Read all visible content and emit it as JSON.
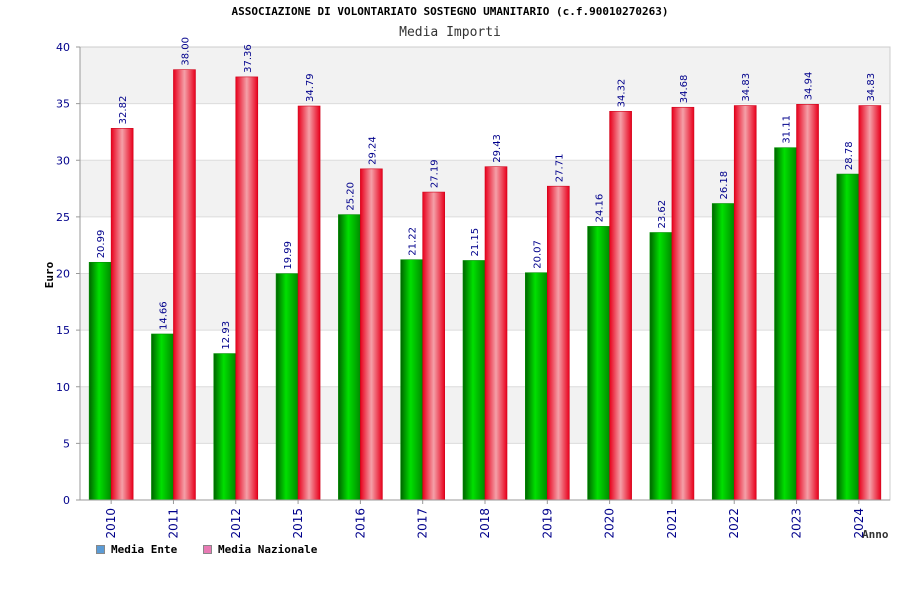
{
  "chart_data": {
    "type": "bar",
    "title": "ASSOCIAZIONE DI VOLONTARIATO SOSTEGNO UMANITARIO (c.f.90010270263)",
    "subtitle": "Media Importi",
    "xlabel": "Anno",
    "ylabel": "Euro",
    "ylim": [
      0,
      40
    ],
    "yticks": [
      "0",
      "5",
      "10",
      "15",
      "20",
      "25",
      "30",
      "35",
      "40"
    ],
    "grid": true,
    "legend_position": "bottom-left",
    "categories": [
      "2010",
      "2011",
      "2012",
      "2015",
      "2016",
      "2017",
      "2018",
      "2019",
      "2020",
      "2021",
      "2022",
      "2023",
      "2024"
    ],
    "series": [
      {
        "name": "Media Ente",
        "color": "#00c800",
        "legend_color": "#5b9bd5",
        "values": [
          20.99,
          14.66,
          12.93,
          19.99,
          25.2,
          21.22,
          21.15,
          20.07,
          24.16,
          23.62,
          26.18,
          31.11,
          28.78
        ],
        "labels": [
          "20.99",
          "14.66",
          "12.93",
          "19.99",
          "25.20",
          "21.22",
          "21.15",
          "20.07",
          "24.16",
          "23.62",
          "26.18",
          "31.11",
          "28.78"
        ]
      },
      {
        "name": "Media Nazionale",
        "color": "#e8001c",
        "legend_color": "#e87ab4",
        "values": [
          32.82,
          38.0,
          37.36,
          34.79,
          29.24,
          27.19,
          29.43,
          27.71,
          34.32,
          34.68,
          34.83,
          34.94,
          34.83
        ],
        "labels": [
          "32.82",
          "38.00",
          "37.36",
          "34.79",
          "29.24",
          "27.19",
          "29.43",
          "27.71",
          "34.32",
          "34.68",
          "34.83",
          "34.94",
          "34.83"
        ]
      }
    ]
  }
}
